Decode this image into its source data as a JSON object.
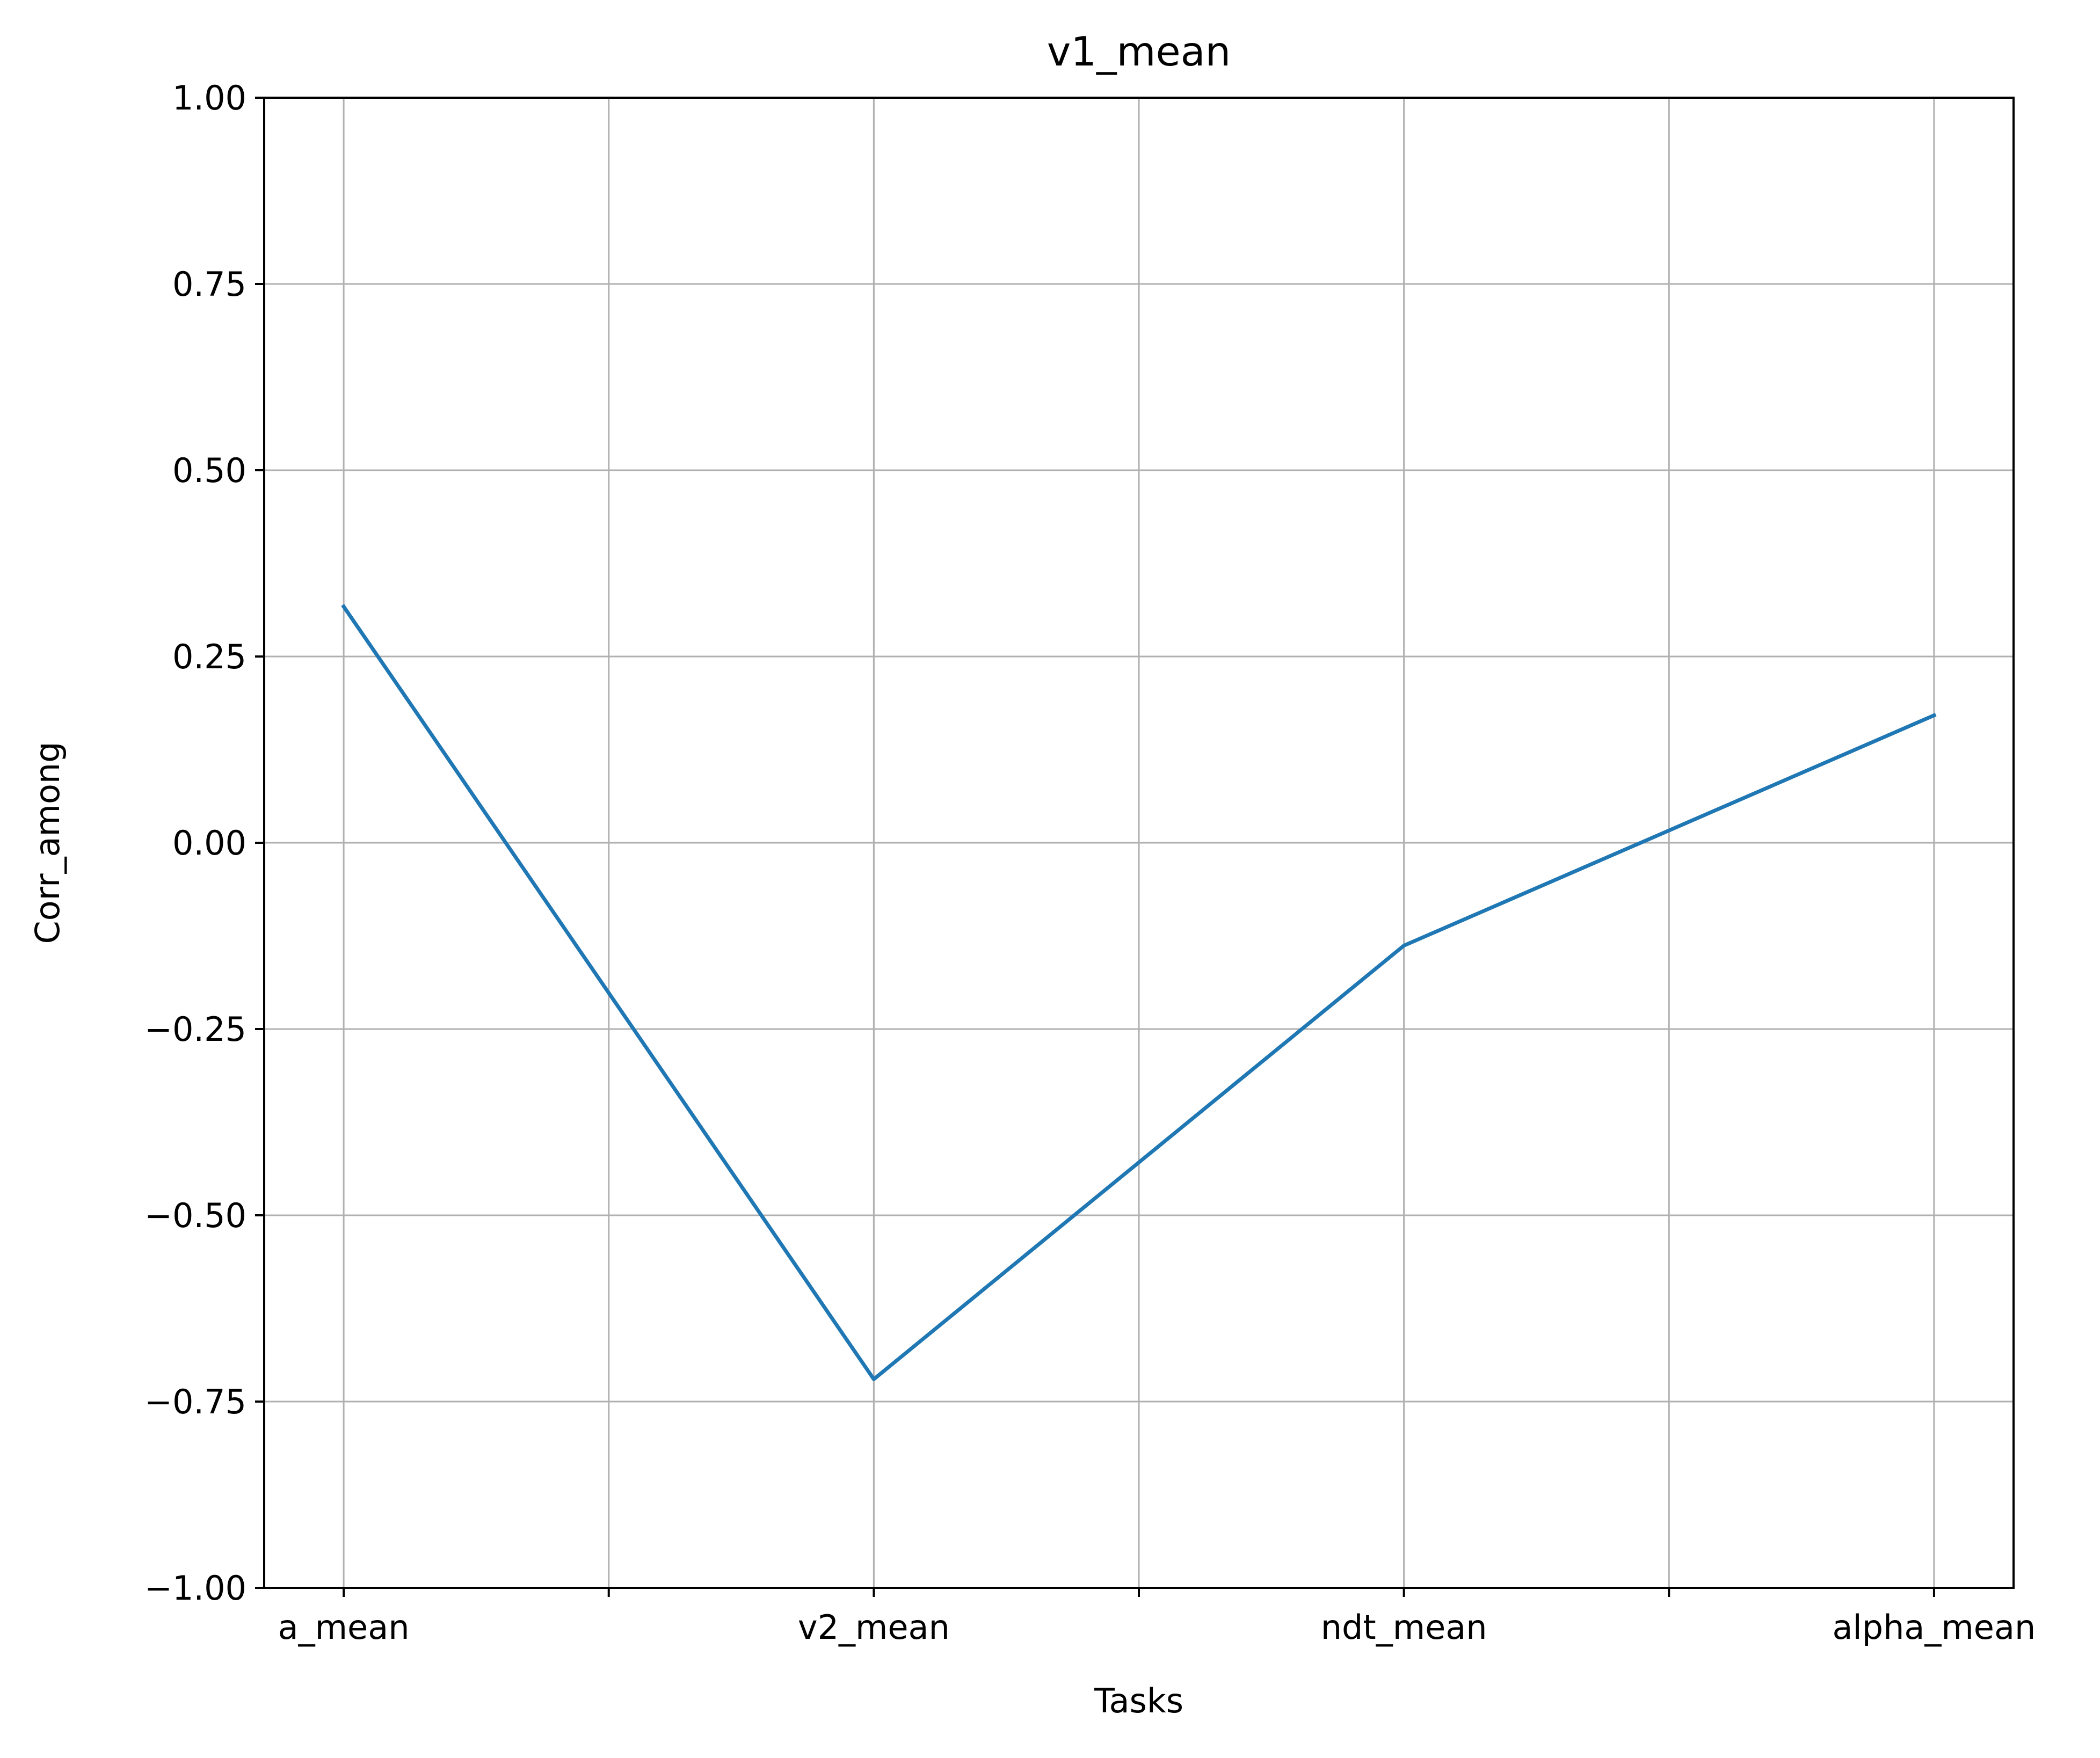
{
  "chart_data": {
    "type": "line",
    "title": "v1_mean",
    "xlabel": "Tasks",
    "ylabel": "Corr_among",
    "categories": [
      "a_mean",
      "v2_mean",
      "ndt_mean",
      "alpha_mean"
    ],
    "series": [
      {
        "values": [
          0.317,
          -0.72,
          -0.138,
          0.171
        ],
        "color": "#1f77b4"
      }
    ],
    "ylim": [
      -1.0,
      1.0
    ],
    "yticks": [
      "1.00",
      "0.75",
      "0.50",
      "0.25",
      "0.00",
      "−0.25",
      "−0.50",
      "−0.75",
      "−1.00"
    ],
    "ytick_values": [
      1.0,
      0.75,
      0.5,
      0.25,
      0.0,
      -0.25,
      -0.5,
      -0.75,
      -1.0
    ],
    "grid": true,
    "grid_color": "#b0b0b0",
    "minor_x_ticks_between_categories": true
  }
}
